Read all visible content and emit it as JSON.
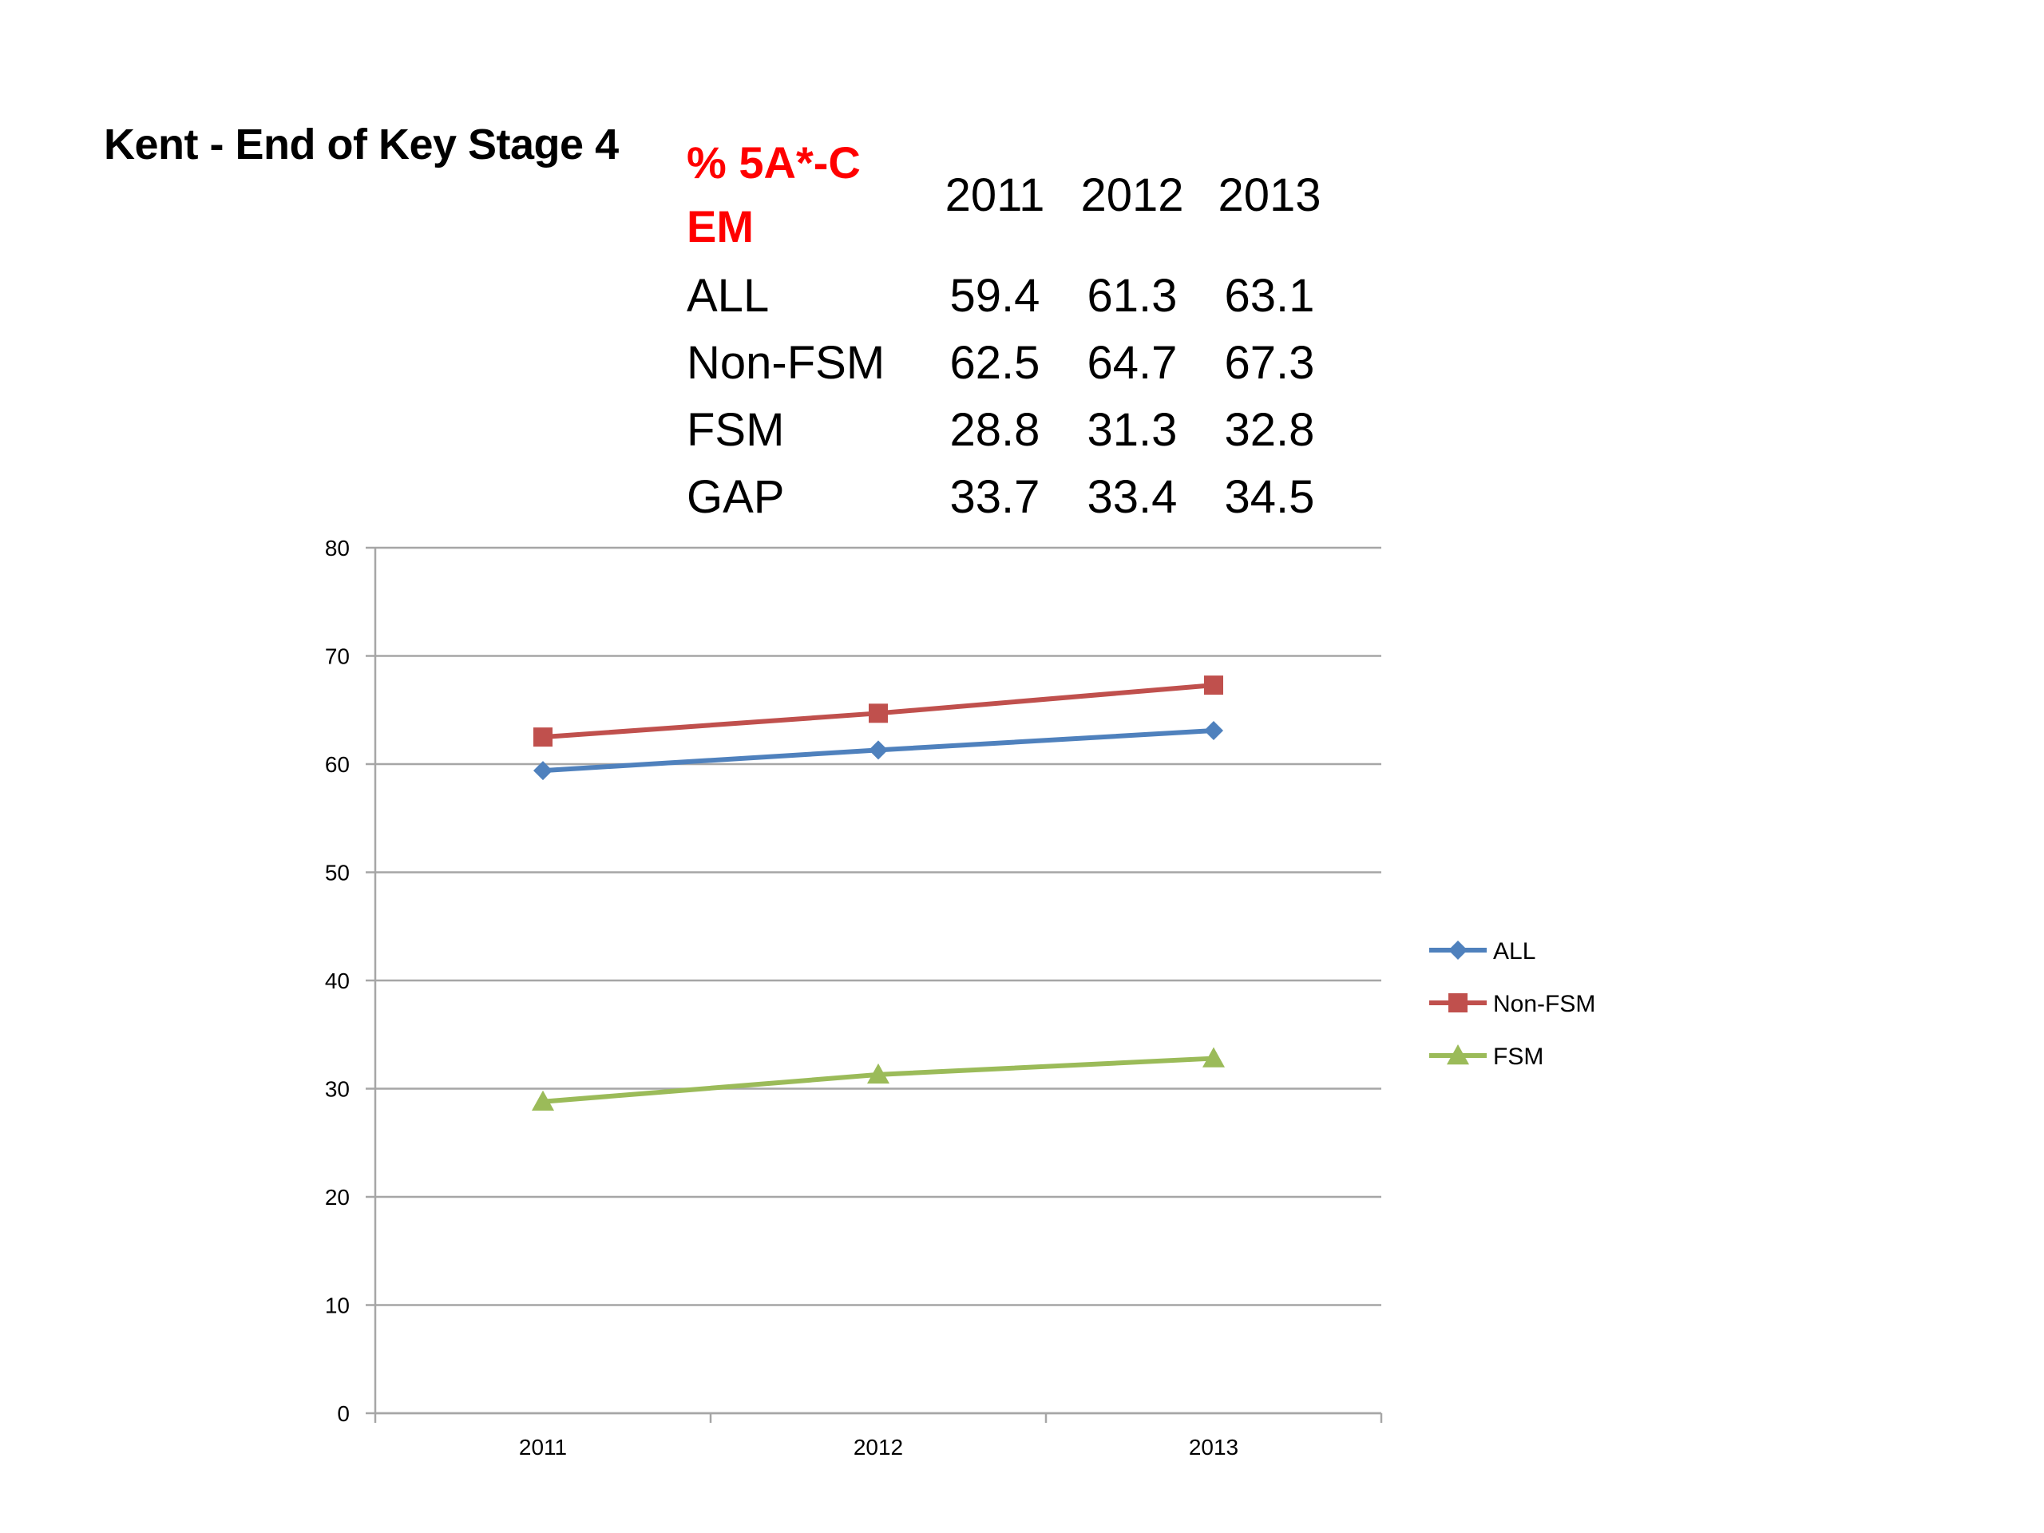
{
  "title": "Kent - End of Key Stage 4",
  "table": {
    "metric_line1": "% 5A*-C",
    "metric_line2": "EM",
    "years": [
      "2011",
      "2012",
      "2013"
    ],
    "rows": [
      {
        "label": "ALL",
        "values": [
          "59.4",
          "61.3",
          "63.1"
        ]
      },
      {
        "label": "Non-FSM",
        "values": [
          "62.5",
          "64.7",
          "67.3"
        ]
      },
      {
        "label": "FSM",
        "values": [
          "28.8",
          "31.3",
          "32.8"
        ]
      },
      {
        "label": "GAP",
        "values": [
          "33.7",
          "33.4",
          "34.5"
        ]
      }
    ]
  },
  "chart_data": {
    "type": "line",
    "title": "",
    "xlabel": "",
    "ylabel": "",
    "categories": [
      "2011",
      "2012",
      "2013"
    ],
    "ylim": [
      0,
      80
    ],
    "yticks": [
      0,
      10,
      20,
      30,
      40,
      50,
      60,
      70,
      80
    ],
    "grid": true,
    "legend_position": "right",
    "series": [
      {
        "name": "ALL",
        "values": [
          59.4,
          61.3,
          63.1
        ],
        "color": "#4f81bd",
        "marker": "diamond"
      },
      {
        "name": "Non-FSM",
        "values": [
          62.5,
          64.7,
          67.3
        ],
        "color": "#c0504d",
        "marker": "square"
      },
      {
        "name": "FSM",
        "values": [
          28.8,
          31.3,
          32.8
        ],
        "color": "#9bbb59",
        "marker": "triangle"
      }
    ]
  }
}
